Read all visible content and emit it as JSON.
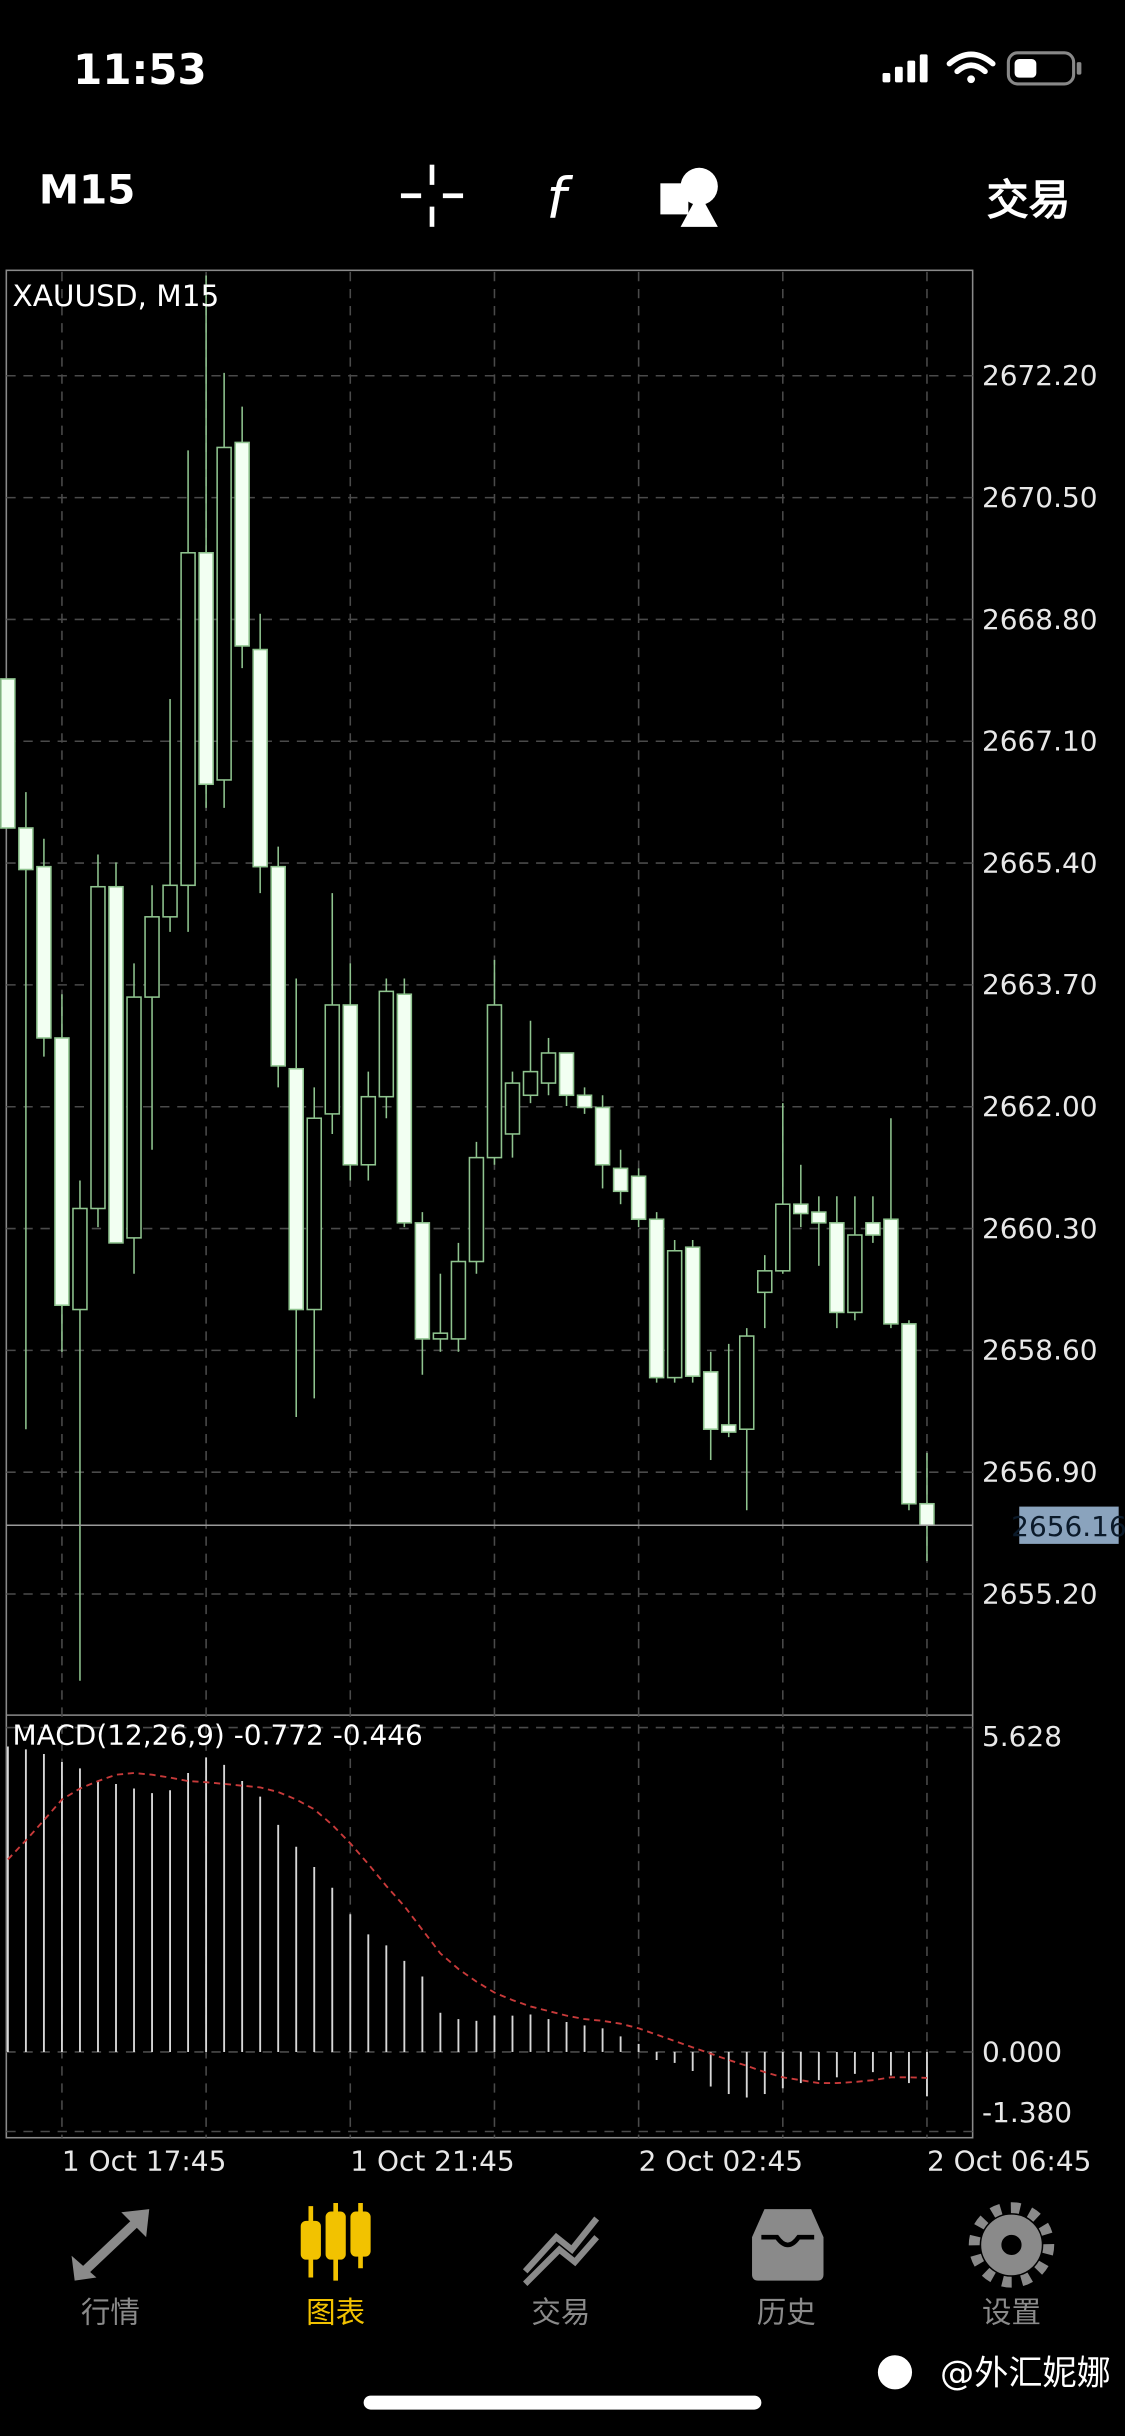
{
  "status_bar": {
    "time": "11:53"
  },
  "toolbar": {
    "timeframe": "M15",
    "trade": "交易"
  },
  "chart_data": [
    {
      "type": "candlestick",
      "title": "XAUUSD, M15",
      "categories": [
        null,
        null,
        null,
        "1 Oct 17:45",
        null,
        null,
        null,
        null,
        null,
        null,
        null,
        null,
        null,
        null,
        null,
        null,
        null,
        null,
        null,
        "1 Oct 21:45",
        null,
        null,
        null,
        null,
        null,
        null,
        null,
        null,
        null,
        null,
        null,
        null,
        null,
        null,
        null,
        "2 Oct 02:45",
        null,
        null,
        null,
        null,
        null,
        null,
        null,
        null,
        null,
        null,
        null,
        null,
        null,
        null,
        null,
        "2 Oct 06:45"
      ],
      "open": [
        2667.97,
        2665.89,
        2665.35,
        2662.96,
        2659.17,
        2660.58,
        2665.07,
        2660.17,
        2663.53,
        2664.65,
        2665.09,
        2669.73,
        2666.56,
        2671.27,
        2668.38,
        2665.35,
        2662.53,
        2659.17,
        2661.9,
        2663.42,
        2661.19,
        2662.14,
        2663.57,
        2660.38,
        2658.76,
        2658.76,
        2659.84,
        2661.29,
        2661.62,
        2662.16,
        2662.33,
        2662.75,
        2662.16,
        2661.99,
        2661.14,
        2661.03,
        2660.43,
        2658.22,
        2660.04,
        2658.3,
        2657.56,
        2657.5,
        2659.41,
        2659.71,
        2660.64,
        2660.53,
        2660.38,
        2659.13,
        2660.38,
        2660.43,
        2658.97,
        2656.46
      ],
      "high": [
        2667.97,
        2666.39,
        2665.74,
        2663.57,
        2660.97,
        2665.52,
        2665.41,
        2664.0,
        2665.09,
        2667.69,
        2671.16,
        2673.6,
        2672.24,
        2671.77,
        2668.88,
        2665.63,
        2663.79,
        2662.27,
        2664.98,
        2664.0,
        2662.49,
        2663.79,
        2663.79,
        2660.53,
        2659.67,
        2660.1,
        2661.51,
        2664.05,
        2662.49,
        2663.2,
        2662.96,
        2662.75,
        2662.27,
        2662.16,
        2661.4,
        2661.14,
        2660.53,
        2660.14,
        2660.14,
        2658.58,
        2658.69,
        2658.91,
        2659.93,
        2662.05,
        2661.19,
        2660.75,
        2660.75,
        2660.75,
        2660.75,
        2661.84,
        2659.02,
        2657.17
      ],
      "low": [
        2665.89,
        2657.5,
        2662.7,
        2658.58,
        2653.99,
        2660.32,
        2660.1,
        2659.67,
        2661.4,
        2664.44,
        2664.44,
        2666.17,
        2666.17,
        2668.12,
        2664.98,
        2662.27,
        2657.67,
        2657.93,
        2661.62,
        2660.97,
        2660.97,
        2661.84,
        2660.32,
        2658.26,
        2658.58,
        2658.58,
        2659.67,
        2661.19,
        2661.29,
        2662.05,
        2662.16,
        2662.01,
        2661.9,
        2660.86,
        2660.64,
        2660.32,
        2658.15,
        2658.15,
        2658.15,
        2657.07,
        2657.39,
        2656.37,
        2658.91,
        2659.67,
        2660.32,
        2659.78,
        2658.91,
        2659.02,
        2660.1,
        2658.91,
        2656.37,
        2655.66
      ],
      "close": [
        2665.89,
        2665.31,
        2662.96,
        2659.23,
        2660.58,
        2665.07,
        2660.1,
        2663.53,
        2664.65,
        2665.09,
        2669.73,
        2666.5,
        2671.2,
        2668.43,
        2665.35,
        2662.57,
        2659.17,
        2661.84,
        2663.42,
        2661.19,
        2662.14,
        2663.61,
        2660.38,
        2658.76,
        2658.84,
        2659.84,
        2661.29,
        2663.42,
        2662.33,
        2662.49,
        2662.75,
        2662.16,
        2661.99,
        2661.19,
        2660.82,
        2660.43,
        2658.22,
        2659.99,
        2658.24,
        2657.5,
        2657.46,
        2658.8,
        2659.71,
        2660.64,
        2660.51,
        2660.38,
        2659.13,
        2660.21,
        2660.21,
        2658.97,
        2656.46,
        2656.16
      ],
      "ylim": [
        2653.51,
        2673.65
      ],
      "yticks": [
        {
          "value": 2672.2,
          "label": "2672.20"
        },
        {
          "value": 2670.5,
          "label": "2670.50"
        },
        {
          "value": 2668.8,
          "label": "2668.80"
        },
        {
          "value": 2667.1,
          "label": "2667.10"
        },
        {
          "value": 2665.4,
          "label": "2665.40"
        },
        {
          "value": 2663.7,
          "label": "2663.70"
        },
        {
          "value": 2662,
          "label": "2662.00"
        },
        {
          "value": 2660.3,
          "label": "2660.30"
        },
        {
          "value": 2658.6,
          "label": "2658.60"
        },
        {
          "value": 2656.9,
          "label": "2656.90"
        },
        {
          "value": 2655.2,
          "label": "2655.20"
        }
      ],
      "last_price": 2656.16,
      "grid": true,
      "up_color": "#000000",
      "down_color": "#f2fff2",
      "wick_color": "#8fc48f"
    },
    {
      "type": "macd",
      "title": "MACD(12,26,9) -0.772 -0.446",
      "histogram": [
        5.3,
        5.25,
        5.17,
        5.03,
        4.92,
        4.7,
        4.65,
        4.57,
        4.49,
        4.54,
        4.84,
        5.11,
        4.98,
        4.7,
        4.43,
        3.94,
        3.56,
        3.21,
        2.85,
        2.39,
        2.04,
        1.85,
        1.58,
        1.31,
        0.68,
        0.57,
        0.54,
        0.63,
        0.63,
        0.65,
        0.57,
        0.52,
        0.46,
        0.41,
        0.27,
        0.14,
        -0.14,
        -0.19,
        -0.33,
        -0.6,
        -0.73,
        -0.79,
        -0.73,
        -0.63,
        -0.54,
        -0.49,
        -0.44,
        -0.38,
        -0.35,
        -0.41,
        -0.54,
        -0.77
      ],
      "signal": [
        3.34,
        3.67,
        4.02,
        4.38,
        4.57,
        4.7,
        4.81,
        4.84,
        4.81,
        4.76,
        4.7,
        4.68,
        4.65,
        4.62,
        4.59,
        4.51,
        4.38,
        4.21,
        3.94,
        3.62,
        3.26,
        2.88,
        2.53,
        2.12,
        1.71,
        1.44,
        1.22,
        1.03,
        0.9,
        0.79,
        0.71,
        0.63,
        0.57,
        0.54,
        0.49,
        0.41,
        0.3,
        0.19,
        0.08,
        -0.03,
        -0.14,
        -0.24,
        -0.35,
        -0.44,
        -0.49,
        -0.54,
        -0.54,
        -0.52,
        -0.49,
        -0.44,
        -0.44,
        -0.45
      ],
      "ylim": [
        -1.38,
        5.628
      ],
      "yticks": [
        5.628,
        {
          "value": 0,
          "label": "0.000"
        },
        {
          "value": -1.38,
          "label": "-1.380"
        }
      ],
      "hist_color": "#d8d8d8",
      "signal_color": "#c83a3a"
    }
  ],
  "tab_bar": {
    "tabs": [
      "行情",
      "图表",
      "交易",
      "历史",
      "设置"
    ],
    "active_tab": 1
  },
  "watermark": "@外汇妮娜"
}
